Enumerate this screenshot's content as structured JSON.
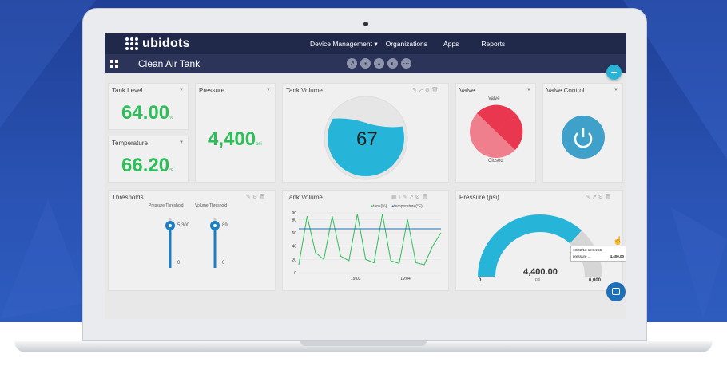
{
  "app": {
    "logo_text": "ubidots",
    "nav": [
      "Device Management ▾",
      "Organizations",
      "Apps",
      "Reports"
    ],
    "dashboard_title": "Clean Air Tank",
    "add_button": "+",
    "toolbar_icons": [
      "share-icon",
      "lock-icon",
      "filter-icon",
      "settings-icon",
      "more-icon"
    ]
  },
  "widgets": {
    "tank_level": {
      "title": "Tank Level",
      "value": "64.00",
      "unit": "%"
    },
    "temperature": {
      "title": "Temperature",
      "value": "66.20",
      "unit": "°F"
    },
    "pressure": {
      "title": "Pressure",
      "value": "4,400",
      "unit": "psi"
    },
    "tank_volume": {
      "title": "Tank Volume",
      "value": "67",
      "fill_percent": 67
    },
    "valve": {
      "title": "Valve",
      "label_top": "Valve",
      "label_bottom": "Closed"
    },
    "valve_control": {
      "title": "Valve Control"
    },
    "thresholds": {
      "title": "Thresholds",
      "sliders": [
        {
          "label": "Pressure Threshold",
          "value": "5,300",
          "min": "0",
          "level": 0.85
        },
        {
          "label": "Volume Threshold",
          "value": "89",
          "min": "0",
          "level": 0.89
        }
      ]
    },
    "tank_volume_chart": {
      "title": "Tank Volume",
      "legend": [
        "tank(%)",
        "temperature(°F)"
      ]
    },
    "pressure_gauge": {
      "title": "Pressure (psi)",
      "value": "4,400.00",
      "unit": "psi",
      "min": "0",
      "max": "6,000",
      "level": 0.733,
      "tooltip_time": "18/02/13 19:04:55",
      "tooltip_label": "pressure ...",
      "tooltip_value": "4,400.00"
    }
  },
  "colors": {
    "green": "#2ebd59",
    "cyan": "#26b5d8",
    "red": "#e8374e",
    "pink": "#f08090",
    "nav": "#20294a"
  },
  "chart_data": {
    "type": "line",
    "title": "Tank Volume",
    "x_ticks": [
      "19:03",
      "19:04"
    ],
    "y_ticks": [
      "0",
      "20",
      "40",
      "60",
      "80",
      "90"
    ],
    "ylim": [
      0,
      90
    ],
    "series": [
      {
        "name": "tank(%)",
        "color": "#2ebd59",
        "values": [
          12,
          85,
          30,
          20,
          85,
          25,
          18,
          88,
          20,
          15,
          88,
          18,
          14,
          80,
          15,
          12,
          40,
          60
        ]
      },
      {
        "name": "temperature(°F)",
        "color": "#1d6fb8",
        "values": [
          66,
          66,
          66,
          66,
          66,
          66,
          66,
          66,
          66,
          66,
          66,
          66,
          66,
          66,
          66,
          66,
          66,
          66
        ]
      }
    ]
  }
}
